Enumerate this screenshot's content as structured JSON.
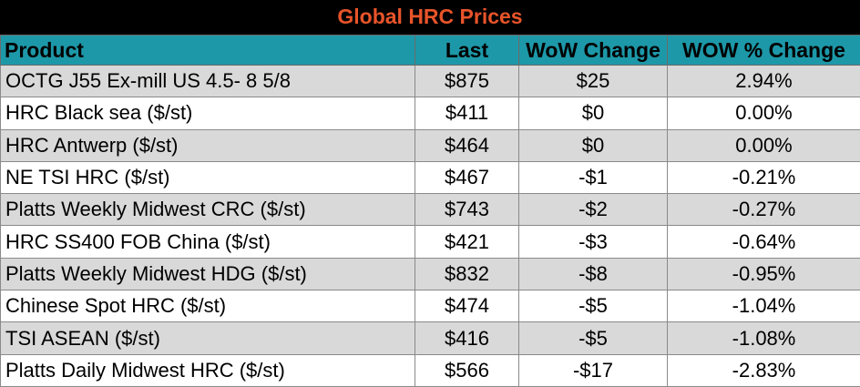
{
  "title": "Global HRC Prices",
  "colors": {
    "title_background": "#000000",
    "title_text": "#e8542a",
    "header_background": "#1d98a8",
    "row_shade": "#d9d9d9",
    "row_plain": "#ffffff"
  },
  "columns": {
    "product": "Product",
    "last": "Last",
    "wow_change": "WoW Change",
    "wow_pct_change": "WOW % Change"
  },
  "rows": [
    {
      "product": "OCTG J55 Ex-mill US 4.5- 8 5/8",
      "last": "$875",
      "wow_change": "$25",
      "wow_pct_change": "2.94%"
    },
    {
      "product": "HRC Black sea ($/st)",
      "last": "$411",
      "wow_change": "$0",
      "wow_pct_change": "0.00%"
    },
    {
      "product": "HRC Antwerp ($/st)",
      "last": "$464",
      "wow_change": "$0",
      "wow_pct_change": "0.00%"
    },
    {
      "product": "NE TSI HRC ($/st)",
      "last": "$467",
      "wow_change": "-$1",
      "wow_pct_change": "-0.21%"
    },
    {
      "product": "Platts Weekly Midwest CRC ($/st)",
      "last": "$743",
      "wow_change": "-$2",
      "wow_pct_change": "-0.27%"
    },
    {
      "product": "HRC SS400 FOB China ($/st)",
      "last": "$421",
      "wow_change": "-$3",
      "wow_pct_change": "-0.64%"
    },
    {
      "product": "Platts Weekly Midwest HDG ($/st)",
      "last": "$832",
      "wow_change": "-$8",
      "wow_pct_change": "-0.95%"
    },
    {
      "product": "Chinese Spot HRC ($/st)",
      "last": "$474",
      "wow_change": "-$5",
      "wow_pct_change": "-1.04%"
    },
    {
      "product": "TSI ASEAN ($/st)",
      "last": "$416",
      "wow_change": "-$5",
      "wow_pct_change": "-1.08%"
    },
    {
      "product": "Platts Daily Midwest HRC ($/st)",
      "last": "$566",
      "wow_change": "-$17",
      "wow_pct_change": "-2.83%"
    }
  ]
}
